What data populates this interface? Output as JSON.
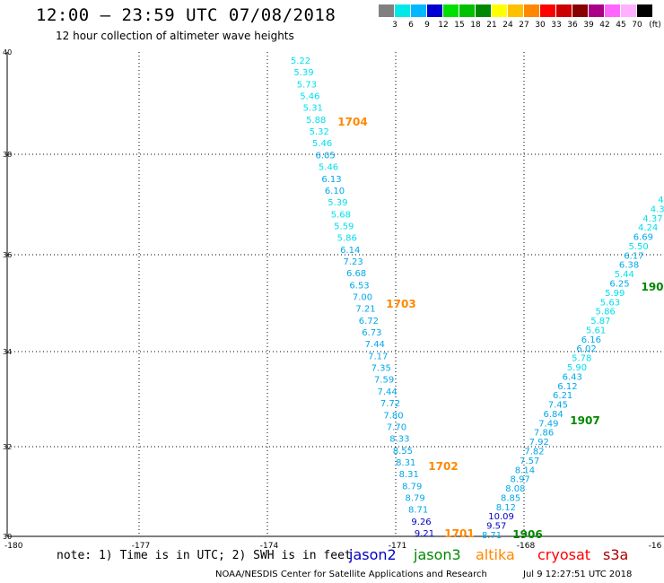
{
  "header": {
    "title": "12:00 – 23:59 UTC 07/08/2018",
    "subtitle": "12 hour collection of altimeter wave heights"
  },
  "color_scale": {
    "unit": "(ft)",
    "swatches": [
      {
        "color": "#808080",
        "label": "3"
      },
      {
        "color": "#00e8e8",
        "label": "6"
      },
      {
        "color": "#00b8ff",
        "label": "9"
      },
      {
        "color": "#0000d0",
        "label": "12"
      },
      {
        "color": "#00e000",
        "label": "15"
      },
      {
        "color": "#00c000",
        "label": "18"
      },
      {
        "color": "#008800",
        "label": "21"
      },
      {
        "color": "#ffff00",
        "label": "24"
      },
      {
        "color": "#ffc000",
        "label": "27"
      },
      {
        "color": "#ff8800",
        "label": "30"
      },
      {
        "color": "#ff0000",
        "label": "33"
      },
      {
        "color": "#cc0000",
        "label": "36"
      },
      {
        "color": "#880000",
        "label": "39"
      },
      {
        "color": "#aa0088",
        "label": "42"
      },
      {
        "color": "#ff66ff",
        "label": "45"
      },
      {
        "color": "#ffb0ff",
        "label": "70"
      },
      {
        "color": "#000000",
        "label": ""
      }
    ]
  },
  "axes": {
    "lon_labels": [
      "-180",
      "-177",
      "-174",
      "-171",
      "-168",
      "-16"
    ],
    "lat_labels": [
      "30",
      "32",
      "34",
      "36",
      "38",
      "40"
    ]
  },
  "tracks": {
    "descending": [
      {
        "v": "5.22",
        "c": "cyan"
      },
      {
        "v": "5.39",
        "c": "cyan"
      },
      {
        "v": "5.73",
        "c": "cyan"
      },
      {
        "v": "5.46",
        "c": "cyan"
      },
      {
        "v": "5.31",
        "c": "cyan"
      },
      {
        "v": "5.88",
        "c": "cyan"
      },
      {
        "v": "5.32",
        "c": "cyan"
      },
      {
        "v": "5.46",
        "c": "cyan"
      },
      {
        "v": "6.05",
        "c": "sky"
      },
      {
        "v": "5.46",
        "c": "cyan"
      },
      {
        "v": "6.13",
        "c": "sky"
      },
      {
        "v": "6.10",
        "c": "sky"
      },
      {
        "v": "5.39",
        "c": "cyan"
      },
      {
        "v": "5.68",
        "c": "cyan"
      },
      {
        "v": "5.59",
        "c": "cyan"
      },
      {
        "v": "5.86",
        "c": "cyan"
      },
      {
        "v": "6.14",
        "c": "sky"
      },
      {
        "v": "7.23",
        "c": "sky"
      },
      {
        "v": "6.68",
        "c": "sky"
      },
      {
        "v": "6.53",
        "c": "sky"
      },
      {
        "v": "7.00",
        "c": "sky"
      },
      {
        "v": "7.21",
        "c": "sky"
      },
      {
        "v": "6.72",
        "c": "sky"
      },
      {
        "v": "6.73",
        "c": "sky"
      },
      {
        "v": "7.44",
        "c": "sky"
      },
      {
        "v": "7.17",
        "c": "sky"
      },
      {
        "v": "7.35",
        "c": "sky"
      },
      {
        "v": "7.59",
        "c": "sky"
      },
      {
        "v": "7.44",
        "c": "sky"
      },
      {
        "v": "7.72",
        "c": "sky"
      },
      {
        "v": "7.80",
        "c": "sky"
      },
      {
        "v": "7.70",
        "c": "sky"
      },
      {
        "v": "8.33",
        "c": "sky"
      },
      {
        "v": "8.55",
        "c": "sky"
      },
      {
        "v": "8.31",
        "c": "sky"
      },
      {
        "v": "8.31",
        "c": "sky"
      },
      {
        "v": "8.79",
        "c": "sky"
      },
      {
        "v": "8.79",
        "c": "sky"
      },
      {
        "v": "8.71",
        "c": "sky"
      },
      {
        "v": "9.26",
        "c": "navy"
      },
      {
        "v": "9.21",
        "c": "navy"
      }
    ],
    "ascending": [
      {
        "v": "8.71",
        "c": "sky"
      },
      {
        "v": "9.57",
        "c": "navy"
      },
      {
        "v": "10.09",
        "c": "navy"
      },
      {
        "v": "8.12",
        "c": "sky"
      },
      {
        "v": "8.85",
        "c": "sky"
      },
      {
        "v": "8.08",
        "c": "sky"
      },
      {
        "v": "8.97",
        "c": "sky"
      },
      {
        "v": "8.14",
        "c": "sky"
      },
      {
        "v": "7.57",
        "c": "sky"
      },
      {
        "v": "7.82",
        "c": "sky"
      },
      {
        "v": "7.92",
        "c": "sky"
      },
      {
        "v": "7.86",
        "c": "sky"
      },
      {
        "v": "7.49",
        "c": "sky"
      },
      {
        "v": "6.84",
        "c": "sky"
      },
      {
        "v": "7.45",
        "c": "sky"
      },
      {
        "v": "6.21",
        "c": "sky"
      },
      {
        "v": "6.12",
        "c": "sky"
      },
      {
        "v": "6.43",
        "c": "sky"
      },
      {
        "v": "5.90",
        "c": "cyan"
      },
      {
        "v": "5.78",
        "c": "cyan"
      },
      {
        "v": "6.02",
        "c": "sky"
      },
      {
        "v": "6.16",
        "c": "sky"
      },
      {
        "v": "5.61",
        "c": "cyan"
      },
      {
        "v": "5.87",
        "c": "cyan"
      },
      {
        "v": "5.86",
        "c": "cyan"
      },
      {
        "v": "5.63",
        "c": "cyan"
      },
      {
        "v": "5.99",
        "c": "cyan"
      },
      {
        "v": "6.25",
        "c": "sky"
      },
      {
        "v": "5.44",
        "c": "cyan"
      },
      {
        "v": "6.38",
        "c": "sky"
      },
      {
        "v": "6.17",
        "c": "sky"
      },
      {
        "v": "5.50",
        "c": "cyan"
      },
      {
        "v": "6.69",
        "c": "sky"
      },
      {
        "v": "4.24",
        "c": "cyan"
      },
      {
        "v": "4.37",
        "c": "cyan"
      },
      {
        "v": "4.3",
        "c": "cyan"
      },
      {
        "v": "4.",
        "c": "cyan"
      }
    ],
    "time_labels": [
      {
        "t": "1704",
        "c": "#ff8800"
      },
      {
        "t": "1703",
        "c": "#ff8800"
      },
      {
        "t": "1702",
        "c": "#ff8800"
      },
      {
        "t": "1701",
        "c": "#ff8800"
      },
      {
        "t": "1906",
        "c": "#008800"
      },
      {
        "t": "1907",
        "c": "#008800"
      },
      {
        "t": "190",
        "c": "#008800"
      }
    ],
    "colors": {
      "cyan": "#00e0ec",
      "sky": "#00a8e8",
      "navy": "#0000c0"
    }
  },
  "footer": {
    "note": "note: 1) Time is in UTC; 2) SWH is in feet",
    "missions": [
      {
        "name": "jason2",
        "color": "#0000c0"
      },
      {
        "name": "jason3",
        "color": "#008800"
      },
      {
        "name": "altika",
        "color": "#ff8800"
      },
      {
        "name": "cryosat",
        "color": "#ff0000"
      },
      {
        "name": "s3a",
        "color": "#aa0000"
      }
    ],
    "credit": "NOAA/NESDIS Center for Satellite Applications and Research",
    "timestamp": "Jul  9 12:27:51 UTC 2018"
  }
}
